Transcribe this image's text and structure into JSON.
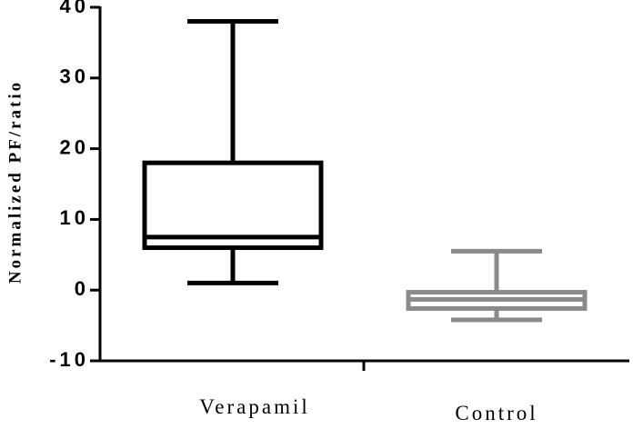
{
  "chart_data": {
    "type": "box",
    "ylabel": "Normalized PF/ratio",
    "categories": [
      "Verapamil",
      "Control"
    ],
    "boxes": [
      {
        "min": 1,
        "q1": 6,
        "median": 7.5,
        "q3": 18,
        "max": 38
      },
      {
        "min": -4.2,
        "q1": -2.6,
        "median": -1.3,
        "q3": -0.3,
        "max": 5.5
      }
    ],
    "colors": [
      "#000000",
      "#8a8a8a"
    ],
    "ylim": [
      -10,
      40
    ],
    "yticks": [
      -10,
      0,
      10,
      20,
      30,
      40
    ]
  }
}
